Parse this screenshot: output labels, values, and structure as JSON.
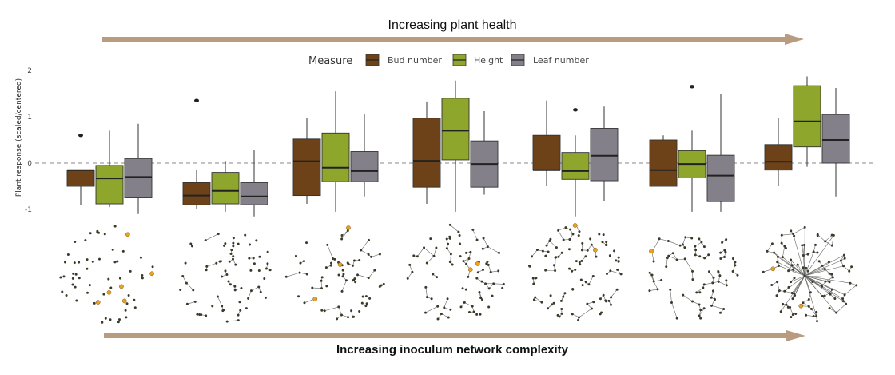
{
  "header": {
    "title": "Increasing plant health"
  },
  "footer": {
    "title": "Increasing inoculum network complexity"
  },
  "legend": {
    "title": "Measure",
    "items": [
      {
        "label": "Bud number",
        "color": "#6e4219"
      },
      {
        "label": "Height",
        "color": "#8ea62c"
      },
      {
        "label": "Leaf number",
        "color": "#848089"
      }
    ]
  },
  "colors": {
    "arrow": "#b99b7f",
    "node": "#3a3a2a",
    "node_highlight": "#e8a21e",
    "edge": "#555555",
    "zero_line": "#888888"
  },
  "chart_data": {
    "type": "box",
    "ylabel": "Plant response (scaled/centered)",
    "yticks": [
      "-1",
      "0",
      "1",
      "2"
    ],
    "ylim": [
      -1.15,
      2.0
    ],
    "groups": [
      {
        "boxes": [
          {
            "series": "Bud number",
            "min": -0.9,
            "q1": -0.5,
            "median": -0.15,
            "q3": -0.15,
            "max": -0.15,
            "outliers": [
              0.6
            ]
          },
          {
            "series": "Height",
            "min": -0.95,
            "q1": -0.88,
            "median": -0.33,
            "q3": -0.05,
            "max": 0.7,
            "outliers": []
          },
          {
            "series": "Leaf number",
            "min": -1.1,
            "q1": -0.75,
            "median": -0.3,
            "q3": 0.1,
            "max": 0.85,
            "outliers": []
          }
        ]
      },
      {
        "boxes": [
          {
            "series": "Bud number",
            "min": -1.0,
            "q1": -0.9,
            "median": -0.7,
            "q3": -0.42,
            "max": -0.15,
            "outliers": [
              1.35
            ]
          },
          {
            "series": "Height",
            "min": -1.05,
            "q1": -0.88,
            "median": -0.6,
            "q3": -0.2,
            "max": 0.05,
            "outliers": []
          },
          {
            "series": "Leaf number",
            "min": -1.15,
            "q1": -0.9,
            "median": -0.72,
            "q3": -0.42,
            "max": 0.28,
            "outliers": []
          }
        ]
      },
      {
        "boxes": [
          {
            "series": "Bud number",
            "min": -0.88,
            "q1": -0.7,
            "median": 0.04,
            "q3": 0.52,
            "max": 0.97,
            "outliers": []
          },
          {
            "series": "Height",
            "min": -1.05,
            "q1": -0.4,
            "median": -0.1,
            "q3": 0.65,
            "max": 1.55,
            "outliers": []
          },
          {
            "series": "Leaf number",
            "min": -0.72,
            "q1": -0.4,
            "median": -0.17,
            "q3": 0.25,
            "max": 1.05,
            "outliers": []
          }
        ]
      },
      {
        "boxes": [
          {
            "series": "Bud number",
            "min": -0.88,
            "q1": -0.52,
            "median": 0.05,
            "q3": 0.97,
            "max": 1.33,
            "outliers": []
          },
          {
            "series": "Height",
            "min": -1.05,
            "q1": 0.07,
            "median": 0.7,
            "q3": 1.4,
            "max": 1.78,
            "outliers": []
          },
          {
            "series": "Leaf number",
            "min": -0.68,
            "q1": -0.52,
            "median": -0.02,
            "q3": 0.48,
            "max": 1.12,
            "outliers": []
          }
        ]
      },
      {
        "boxes": [
          {
            "series": "Bud number",
            "min": -0.5,
            "q1": -0.15,
            "median": -0.15,
            "q3": 0.6,
            "max": 1.35,
            "outliers": []
          },
          {
            "series": "Height",
            "min": -1.15,
            "q1": -0.35,
            "median": -0.17,
            "q3": 0.23,
            "max": 0.6,
            "outliers": [
              1.15
            ]
          },
          {
            "series": "Leaf number",
            "min": -0.82,
            "q1": -0.38,
            "median": 0.16,
            "q3": 0.75,
            "max": 1.22,
            "outliers": []
          }
        ]
      },
      {
        "boxes": [
          {
            "series": "Bud number",
            "min": -0.5,
            "q1": -0.5,
            "median": -0.15,
            "q3": 0.5,
            "max": 0.6,
            "outliers": []
          },
          {
            "series": "Height",
            "min": -1.05,
            "q1": -0.32,
            "median": -0.02,
            "q3": 0.27,
            "max": 0.7,
            "outliers": [
              1.65
            ]
          },
          {
            "series": "Leaf number",
            "min": -1.05,
            "q1": -0.83,
            "median": -0.27,
            "q3": 0.17,
            "max": 1.5,
            "outliers": []
          }
        ]
      },
      {
        "boxes": [
          {
            "series": "Bud number",
            "min": -0.5,
            "q1": -0.15,
            "median": 0.03,
            "q3": 0.4,
            "max": 0.97,
            "outliers": []
          },
          {
            "series": "Height",
            "min": -0.08,
            "q1": 0.35,
            "median": 0.9,
            "q3": 1.67,
            "max": 1.87,
            "outliers": []
          },
          {
            "series": "Leaf number",
            "min": -0.72,
            "q1": 0.0,
            "median": 0.5,
            "q3": 1.05,
            "max": 1.62,
            "outliers": []
          }
        ]
      }
    ],
    "networks": [
      {
        "nodes": 60,
        "edge_fraction": 0.0,
        "hub": false,
        "highlights": 6
      },
      {
        "nodes": 70,
        "edge_fraction": 0.35,
        "hub": false,
        "highlights": 0
      },
      {
        "nodes": 70,
        "edge_fraction": 0.55,
        "hub": false,
        "highlights": 3
      },
      {
        "nodes": 80,
        "edge_fraction": 0.65,
        "hub": false,
        "highlights": 2
      },
      {
        "nodes": 100,
        "edge_fraction": 0.75,
        "hub": false,
        "highlights": 2
      },
      {
        "nodes": 75,
        "edge_fraction": 0.9,
        "hub": false,
        "highlights": 1
      },
      {
        "nodes": 100,
        "edge_fraction": 1.0,
        "hub": true,
        "highlights": 2
      }
    ]
  }
}
